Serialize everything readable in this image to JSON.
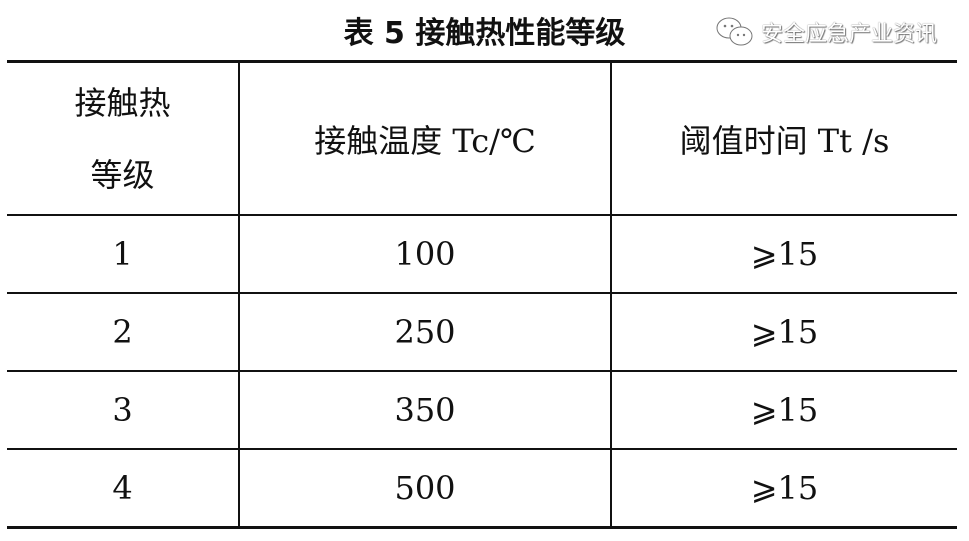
{
  "title": "表 5  接触热性能等级",
  "table": {
    "headers": [
      "接触热等级",
      "接触温度 Tc/℃",
      "阈值时间 Tt /s"
    ],
    "header_lines": [
      "接触热",
      "等级"
    ],
    "rows": [
      [
        "1",
        "100",
        "⩾15"
      ],
      [
        "2",
        "250",
        "⩾15"
      ],
      [
        "3",
        "350",
        "⩾15"
      ],
      [
        "4",
        "500",
        "⩾15"
      ]
    ]
  },
  "watermark": {
    "text": "安全应急产业资讯",
    "icon": "wechat-icon"
  }
}
